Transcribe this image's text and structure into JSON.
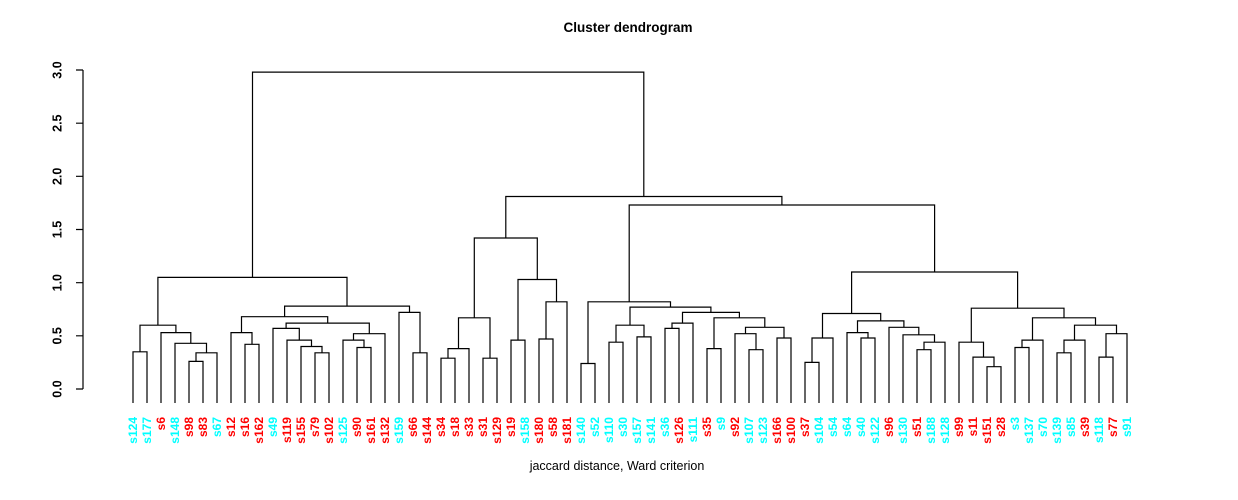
{
  "title": "Cluster dendrogram",
  "xlabel": "jaccard distance, Ward criterion",
  "chart_data": {
    "type": "dendrogram",
    "title": "Cluster dendrogram",
    "xlabel": "jaccard distance, Ward criterion",
    "ylabel": "",
    "ylim": [
      0.0,
      3.0
    ],
    "yticks": [
      "0.0",
      "0.5",
      "1.0",
      "1.5",
      "2.0",
      "2.5",
      "3.0"
    ],
    "grid": false,
    "line_color": "#000000",
    "leaf_color_palette": {
      "red": "#FF0000",
      "cyan": "#00FFFF"
    },
    "leaf_order": [
      "s124",
      "s177",
      "s6",
      "s148",
      "s98",
      "s83",
      "s67",
      "s12",
      "s16",
      "s162",
      "s49",
      "s119",
      "s155",
      "s79",
      "s102",
      "s125",
      "s90",
      "s161",
      "s132",
      "s159",
      "s66",
      "s144",
      "s34",
      "s18",
      "s33",
      "s31",
      "s129",
      "s19",
      "s158",
      "s180",
      "s58",
      "s181",
      "s140",
      "s52",
      "s110",
      "s30",
      "s157",
      "s141",
      "s36",
      "s126",
      "s111",
      "s35",
      "s9",
      "s92",
      "s107",
      "s123",
      "s166",
      "s100",
      "s37",
      "s104",
      "s54",
      "s64",
      "s40",
      "s122",
      "s96",
      "s130",
      "s51",
      "s188",
      "s128",
      "s99",
      "s11",
      "s151",
      "s28",
      "s3",
      "s137",
      "s70",
      "s139",
      "s85",
      "s39",
      "s118",
      "s77",
      "s91"
    ],
    "leaf_colors": {
      "s124": "cyan",
      "s177": "cyan",
      "s6": "red",
      "s148": "cyan",
      "s98": "red",
      "s83": "red",
      "s67": "cyan",
      "s12": "red",
      "s16": "red",
      "s162": "red",
      "s49": "cyan",
      "s119": "red",
      "s155": "red",
      "s79": "red",
      "s102": "red",
      "s125": "cyan",
      "s90": "red",
      "s161": "red",
      "s132": "red",
      "s159": "cyan",
      "s66": "red",
      "s144": "red",
      "s34": "red",
      "s18": "red",
      "s33": "red",
      "s31": "red",
      "s129": "red",
      "s19": "red",
      "s158": "cyan",
      "s180": "red",
      "s58": "red",
      "s181": "red",
      "s140": "cyan",
      "s52": "cyan",
      "s110": "cyan",
      "s30": "cyan",
      "s157": "cyan",
      "s141": "cyan",
      "s36": "cyan",
      "s126": "red",
      "s111": "cyan",
      "s35": "red",
      "s9": "cyan",
      "s92": "red",
      "s107": "cyan",
      "s123": "cyan",
      "s166": "red",
      "s100": "red",
      "s37": "red",
      "s104": "cyan",
      "s54": "cyan",
      "s64": "cyan",
      "s40": "cyan",
      "s122": "cyan",
      "s96": "red",
      "s130": "cyan",
      "s51": "red",
      "s188": "cyan",
      "s128": "cyan",
      "s99": "red",
      "s11": "red",
      "s151": "red",
      "s28": "red",
      "s3": "cyan",
      "s137": "cyan",
      "s70": "cyan",
      "s139": "cyan",
      "s85": "cyan",
      "s39": "red",
      "s118": "cyan",
      "s77": "red",
      "s91": "cyan"
    },
    "tree": [
      [
        [
          [
            "s124",
            "s177",
            0.35
          ],
          [
            "s6",
            [
              "s148",
              [
                [
                  "s98",
                  "s83",
                  0.26
                ],
                "s67",
                0.34
              ],
              0.43
            ],
            0.53
          ],
          0.6
        ],
        [
          [
            [
              "s12",
              [
                "s16",
                "s162",
                0.42
              ],
              0.53
            ],
            [
              [
                "s49",
                [
                  "s119",
                  [
                    "s155",
                    [
                      "s79",
                      "s102",
                      0.34
                    ],
                    0.4
                  ],
                  0.46
                ],
                0.57
              ],
              [
                [
                  "s125",
                  [
                    "s90",
                    "s161",
                    0.39
                  ],
                  0.46
                ],
                "s132",
                0.52
              ],
              0.62
            ],
            0.68
          ],
          [
            "s159",
            [
              "s66",
              "s144",
              0.34
            ],
            0.72
          ],
          0.78
        ],
        1.05
      ],
      [
        [
          [
            [
              [
                "s34",
                "s18",
                0.29
              ],
              "s33",
              0.38
            ],
            [
              "s31",
              "s129",
              0.29
            ],
            0.67
          ],
          [
            [
              "s19",
              "s158",
              0.46
            ],
            [
              [
                "s180",
                "s58",
                0.47
              ],
              "s181",
              0.82
            ],
            1.03
          ],
          1.42
        ],
        [
          [
            [
              "s140",
              "s52",
              0.24
            ],
            [
              [
                [
                  "s110",
                  "s30",
                  0.44
                ],
                [
                  "s157",
                  "s141",
                  0.49
                ],
                0.6
              ],
              [
                [
                  [
                    "s36",
                    "s126",
                    0.57
                  ],
                  "s111",
                  0.62
                ],
                [
                  [
                    "s35",
                    "s9",
                    0.38
                  ],
                  [
                    [
                      "s92",
                      [
                        "s107",
                        "s123",
                        0.37
                      ],
                      0.52
                    ],
                    [
                      "s166",
                      "s100",
                      0.48
                    ],
                    0.58
                  ],
                  0.67
                ],
                0.72
              ],
              0.77
            ],
            0.82
          ],
          [
            [
              [
                [
                  "s37",
                  "s104",
                  0.25
                ],
                "s54",
                0.48
              ],
              [
                [
                  "s64",
                  [
                    "s40",
                    "s122",
                    0.48
                  ],
                  0.53
                ],
                [
                  "s96",
                  [
                    "s130",
                    [
                      [
                        "s51",
                        "s188",
                        0.37
                      ],
                      "s128",
                      0.44
                    ],
                    0.51
                  ],
                  0.58
                ],
                0.64
              ],
              0.71
            ],
            [
              [
                "s99",
                [
                  "s11",
                  [
                    "s151",
                    "s28",
                    0.21
                  ],
                  0.3
                ],
                0.44
              ],
              [
                [
                  [
                    "s3",
                    "s137",
                    0.39
                  ],
                  "s70",
                  0.46
                ],
                [
                  [
                    [
                      "s139",
                      "s85",
                      0.34
                    ],
                    "s39",
                    0.46
                  ],
                  [
                    [
                      "s118",
                      "s77",
                      0.3
                    ],
                    "s91",
                    0.52
                  ],
                  0.6
                ],
                0.67
              ],
              0.76
            ],
            1.1
          ],
          1.73
        ],
        1.81
      ],
      2.98
    ]
  }
}
